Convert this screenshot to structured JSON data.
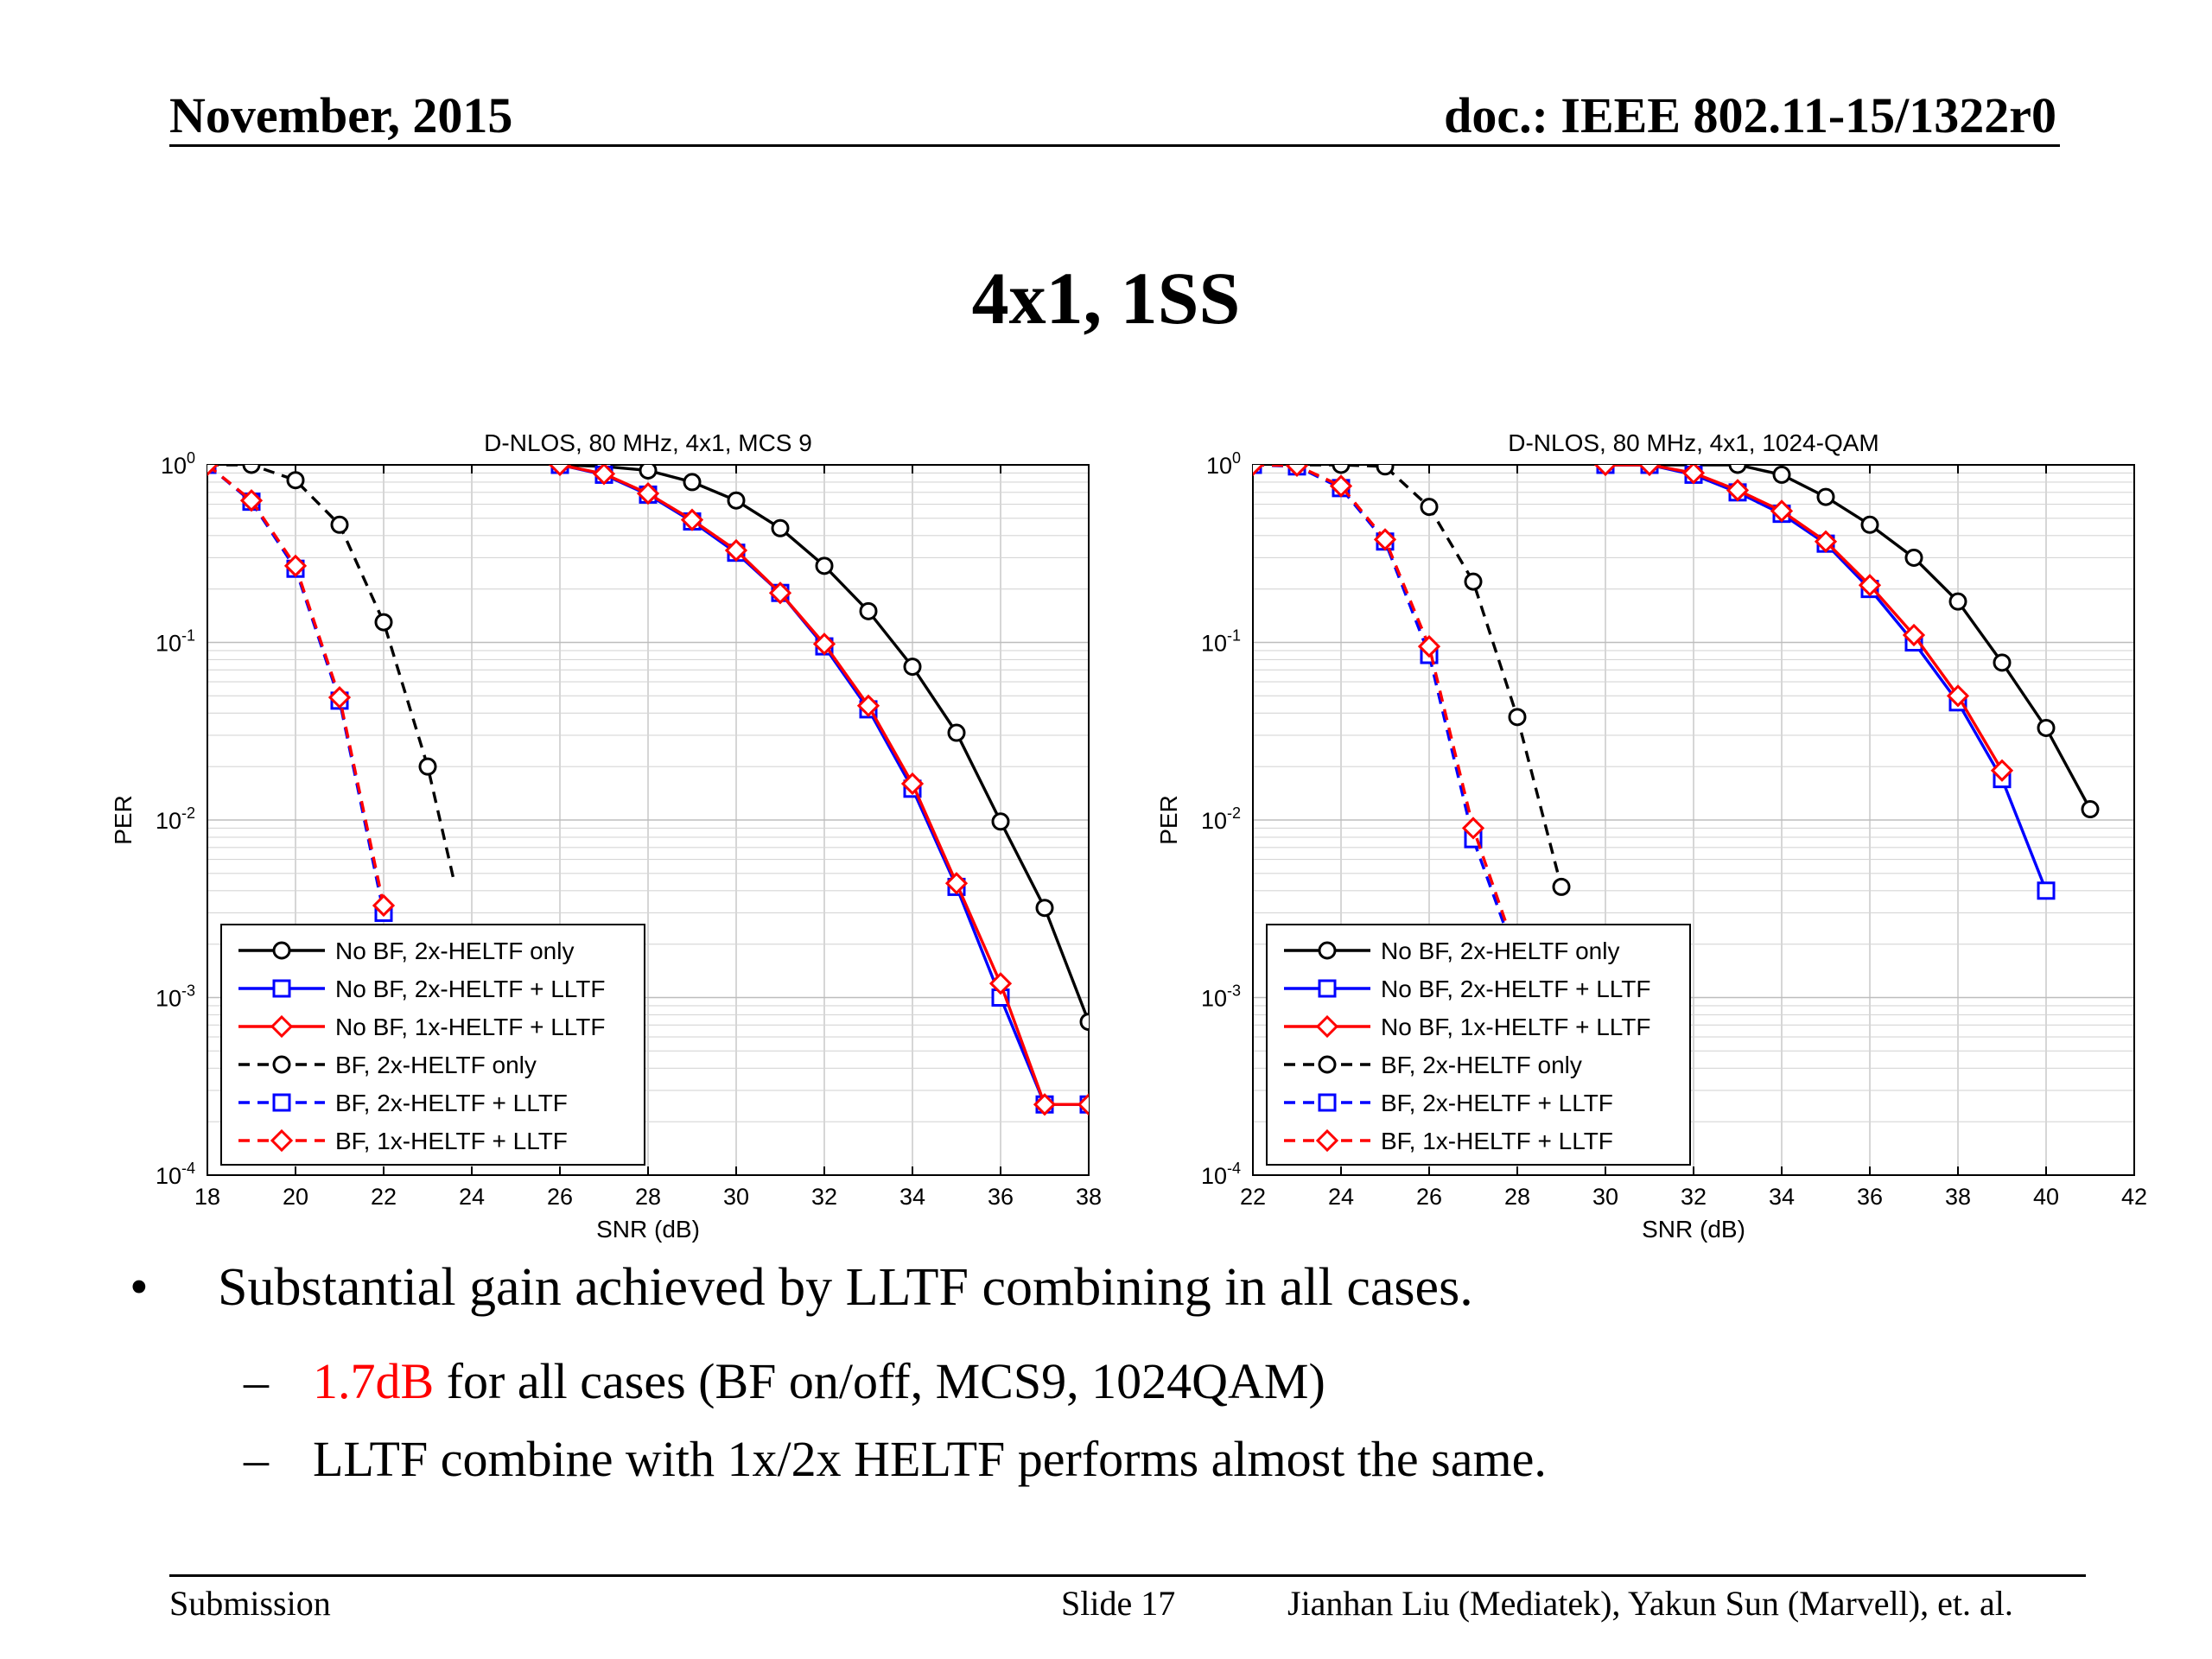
{
  "header": {
    "date": "November, 2015",
    "doc": "doc.: IEEE 802.11-15/1322r0"
  },
  "slide_title": "4x1, 1SS",
  "bullets": {
    "main": "Substantial gain achieved by LLTF combining in all cases.",
    "main_marker": "•",
    "sub_marker": "–",
    "sub1_highlight": "1.7dB",
    "sub1_rest": " for all cases (BF on/off, MCS9, 1024QAM)",
    "sub2": "LLTF combine with 1x/2x HELTF performs almost the same."
  },
  "footer": {
    "left": "Submission",
    "center": "Slide 17",
    "right": "Jianhan Liu (Mediatek), Yakun Sun (Marvell),  et. al."
  },
  "colors": {
    "black_series": "#000000",
    "blue_series": "#0000ff",
    "red_series": "#ff0000",
    "highlight": "#ff0000",
    "grid": "#c0c0c0"
  },
  "chart_data": [
    {
      "type": "line",
      "title": "D-NLOS, 80 MHz, 4x1, MCS 9",
      "xlabel": "SNR (dB)",
      "ylabel": "PER",
      "xlim": [
        18,
        38
      ],
      "ylim": [
        0.0001,
        1
      ],
      "yscale": "log",
      "xticks": [
        18,
        20,
        22,
        24,
        26,
        28,
        30,
        32,
        34,
        36,
        38
      ],
      "yticks": [
        {
          "base": "10",
          "exp": "0"
        },
        {
          "base": "10",
          "exp": "-1"
        },
        {
          "base": "10",
          "exp": "-2"
        },
        {
          "base": "10",
          "exp": "-3"
        },
        {
          "base": "10",
          "exp": "-4"
        }
      ],
      "grid": true,
      "legend_position": "bottom-left",
      "series": [
        {
          "name": "No BF, 2x-HELTF only",
          "color": "#000000",
          "dash": false,
          "marker": "circle",
          "x": [
            26,
            27,
            28,
            29,
            30,
            31,
            32,
            33,
            34,
            35,
            36,
            37,
            38
          ],
          "y": [
            1.0,
            0.98,
            0.93,
            0.8,
            0.63,
            0.44,
            0.27,
            0.15,
            0.073,
            0.031,
            0.0098,
            0.0032,
            0.00073
          ]
        },
        {
          "name": "No BF, 2x-HELTF + LLTF",
          "color": "#0000ff",
          "dash": false,
          "marker": "square",
          "x": [
            26,
            27,
            28,
            29,
            30,
            31,
            32,
            33,
            34,
            35,
            36,
            37,
            38
          ],
          "y": [
            1.0,
            0.88,
            0.68,
            0.48,
            0.32,
            0.19,
            0.095,
            0.042,
            0.015,
            0.0042,
            0.001,
            0.00025,
            0.00025
          ]
        },
        {
          "name": "No BF, 1x-HELTF + LLTF",
          "color": "#ff0000",
          "dash": false,
          "marker": "diamond",
          "x": [
            26,
            27,
            28,
            29,
            30,
            31,
            32,
            33,
            34,
            35,
            36,
            37,
            38
          ],
          "y": [
            1.0,
            0.89,
            0.69,
            0.49,
            0.33,
            0.19,
            0.098,
            0.044,
            0.016,
            0.0044,
            0.0012,
            0.00025,
            0.00025
          ]
        },
        {
          "name": "BF, 2x-HELTF only",
          "color": "#000000",
          "dash": true,
          "marker": "circle",
          "x": [
            18,
            19,
            20,
            21,
            22,
            23,
            23.6
          ],
          "y": [
            1.0,
            1.0,
            0.82,
            0.46,
            0.13,
            0.02,
            0.0045
          ],
          "marker_count": 6
        },
        {
          "name": "BF, 2x-HELTF + LLTF",
          "color": "#0000ff",
          "dash": true,
          "marker": "square",
          "x": [
            18,
            19,
            20,
            21,
            22
          ],
          "y": [
            1.0,
            0.62,
            0.26,
            0.047,
            0.003
          ],
          "marker_count": 5
        },
        {
          "name": "BF, 1x-HELTF + LLTF",
          "color": "#ff0000",
          "dash": true,
          "marker": "diamond",
          "x": [
            18,
            19,
            20,
            21,
            22
          ],
          "y": [
            1.0,
            0.63,
            0.27,
            0.049,
            0.0033
          ],
          "marker_count": 5
        }
      ]
    },
    {
      "type": "line",
      "title": "D-NLOS, 80 MHz, 4x1, 1024-QAM",
      "xlabel": "SNR (dB)",
      "ylabel": "PER",
      "xlim": [
        22,
        42
      ],
      "ylim": [
        0.0001,
        1
      ],
      "yscale": "log",
      "xticks": [
        22,
        24,
        26,
        28,
        30,
        32,
        34,
        36,
        38,
        40,
        42
      ],
      "yticks": [
        {
          "base": "10",
          "exp": "0"
        },
        {
          "base": "10",
          "exp": "-1"
        },
        {
          "base": "10",
          "exp": "-2"
        },
        {
          "base": "10",
          "exp": "-3"
        },
        {
          "base": "10",
          "exp": "-4"
        }
      ],
      "grid": true,
      "legend_position": "bottom-left",
      "series": [
        {
          "name": "No BF, 2x-HELTF only",
          "color": "#000000",
          "dash": false,
          "marker": "circle",
          "x": [
            30,
            31,
            32,
            33,
            34,
            35,
            36,
            37,
            38,
            39,
            40,
            41
          ],
          "y": [
            1.0,
            1.0,
            1.0,
            1.0,
            0.88,
            0.66,
            0.46,
            0.3,
            0.17,
            0.077,
            0.033,
            0.0115
          ]
        },
        {
          "name": "No BF, 2x-HELTF + LLTF",
          "color": "#0000ff",
          "dash": false,
          "marker": "square",
          "x": [
            30,
            31,
            32,
            33,
            34,
            35,
            36,
            37,
            38,
            39,
            40
          ],
          "y": [
            1.0,
            1.0,
            0.88,
            0.7,
            0.53,
            0.36,
            0.2,
            0.1,
            0.046,
            0.017,
            0.004
          ]
        },
        {
          "name": "No BF, 1x-HELTF + LLTF",
          "color": "#ff0000",
          "dash": false,
          "marker": "diamond",
          "x": [
            30,
            31,
            32,
            33,
            34,
            35,
            36,
            37,
            38,
            39
          ],
          "y": [
            1.0,
            1.0,
            0.9,
            0.72,
            0.55,
            0.37,
            0.21,
            0.11,
            0.05,
            0.019
          ]
        },
        {
          "name": "BF, 2x-HELTF only",
          "color": "#000000",
          "dash": true,
          "marker": "circle",
          "x": [
            22,
            23,
            24,
            25,
            26,
            27,
            28,
            29
          ],
          "y": [
            1.0,
            1.0,
            1.0,
            0.98,
            0.58,
            0.22,
            0.038,
            0.0042
          ]
        },
        {
          "name": "BF, 2x-HELTF + LLTF",
          "color": "#0000ff",
          "dash": true,
          "marker": "square",
          "x": [
            22,
            23,
            24,
            25,
            26,
            27,
            27.8
          ],
          "y": [
            1.0,
            0.98,
            0.74,
            0.37,
            0.085,
            0.0078,
            0.0022
          ],
          "marker_count": 6
        },
        {
          "name": "BF, 1x-HELTF + LLTF",
          "color": "#ff0000",
          "dash": true,
          "marker": "diamond",
          "x": [
            22,
            23,
            24,
            25,
            26,
            27,
            27.8
          ],
          "y": [
            1.0,
            0.99,
            0.76,
            0.38,
            0.095,
            0.009,
            0.0024
          ],
          "marker_count": 6
        }
      ]
    }
  ]
}
